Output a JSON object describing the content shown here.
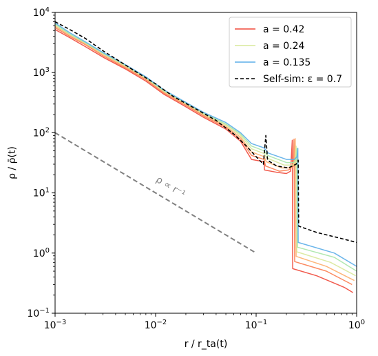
{
  "chart_data": {
    "type": "line",
    "xscale": "log",
    "yscale": "log",
    "xlim": [
      0.001,
      1
    ],
    "ylim": [
      0.1,
      10000
    ],
    "xlabel": "r / r_ta(t)",
    "ylabel": "ρ / ρ̄(t)",
    "x_ticks": [
      {
        "value": 0.001,
        "base": "10",
        "exp": "−3"
      },
      {
        "value": 0.01,
        "base": "10",
        "exp": "−2"
      },
      {
        "value": 0.1,
        "base": "10",
        "exp": "−1"
      },
      {
        "value": 1,
        "base": "10",
        "exp": "0"
      }
    ],
    "y_ticks": [
      {
        "value": 0.1,
        "base": "10",
        "exp": "−1"
      },
      {
        "value": 1,
        "base": "10",
        "exp": "0"
      },
      {
        "value": 10,
        "base": "10",
        "exp": "1"
      },
      {
        "value": 100,
        "base": "10",
        "exp": "2"
      },
      {
        "value": 1000,
        "base": "10",
        "exp": "3"
      },
      {
        "value": 10000,
        "base": "10",
        "exp": "4"
      }
    ],
    "legend": {
      "placement": "top-right"
    },
    "annotation": {
      "text": "ρ ∝ r⁻¹",
      "color": "#808080"
    },
    "reference_line": {
      "style": "dashed",
      "color": "#808080",
      "points": [
        [
          0.001,
          100
        ],
        [
          0.1,
          1
        ]
      ]
    },
    "series": [
      {
        "name": "a = 0.42",
        "color": "#f0483a",
        "legend": true,
        "points": [
          [
            0.001,
            5200
          ],
          [
            0.0014,
            3800
          ],
          [
            0.002,
            2700
          ],
          [
            0.003,
            1800
          ],
          [
            0.005,
            1150
          ],
          [
            0.008,
            720
          ],
          [
            0.012,
            440
          ],
          [
            0.02,
            270
          ],
          [
            0.03,
            180
          ],
          [
            0.05,
            115
          ],
          [
            0.07,
            72
          ],
          [
            0.09,
            36
          ],
          [
            0.12,
            33
          ],
          [
            0.121,
            24
          ],
          [
            0.16,
            22
          ],
          [
            0.2,
            21
          ],
          [
            0.22,
            23
          ],
          [
            0.229,
            75
          ],
          [
            0.231,
            0.55
          ],
          [
            0.4,
            0.42
          ],
          [
            0.75,
            0.27
          ],
          [
            0.92,
            0.22
          ]
        ]
      },
      {
        "name": "",
        "color": "#fb7c4e",
        "legend": false,
        "points": [
          [
            0.001,
            5600
          ],
          [
            0.0014,
            4000
          ],
          [
            0.002,
            2900
          ],
          [
            0.003,
            1900
          ],
          [
            0.005,
            1200
          ],
          [
            0.008,
            760
          ],
          [
            0.012,
            460
          ],
          [
            0.02,
            285
          ],
          [
            0.03,
            190
          ],
          [
            0.05,
            122
          ],
          [
            0.07,
            78
          ],
          [
            0.09,
            42
          ],
          [
            0.12,
            36
          ],
          [
            0.124,
            28
          ],
          [
            0.17,
            23
          ],
          [
            0.21,
            24
          ],
          [
            0.235,
            28
          ],
          [
            0.238,
            78
          ],
          [
            0.242,
            0.72
          ],
          [
            0.5,
            0.5
          ],
          [
            0.9,
            0.3
          ]
        ]
      },
      {
        "name": "",
        "color": "#fdae6b",
        "legend": false,
        "points": [
          [
            0.001,
            5900
          ],
          [
            0.0014,
            4200
          ],
          [
            0.002,
            3000
          ],
          [
            0.003,
            2000
          ],
          [
            0.005,
            1250
          ],
          [
            0.008,
            790
          ],
          [
            0.012,
            480
          ],
          [
            0.02,
            295
          ],
          [
            0.03,
            198
          ],
          [
            0.05,
            128
          ],
          [
            0.07,
            84
          ],
          [
            0.09,
            48
          ],
          [
            0.12,
            40
          ],
          [
            0.126,
            33
          ],
          [
            0.18,
            26
          ],
          [
            0.22,
            26
          ],
          [
            0.24,
            30
          ],
          [
            0.245,
            80
          ],
          [
            0.25,
            0.88
          ],
          [
            0.5,
            0.6
          ],
          [
            0.95,
            0.35
          ]
        ]
      },
      {
        "name": "a = 0.24",
        "color": "#d8e89a",
        "legend": true,
        "points": [
          [
            0.001,
            6200
          ],
          [
            0.0014,
            4300
          ],
          [
            0.002,
            3100
          ],
          [
            0.003,
            2050
          ],
          [
            0.005,
            1300
          ],
          [
            0.008,
            810
          ],
          [
            0.012,
            495
          ],
          [
            0.02,
            305
          ],
          [
            0.03,
            205
          ],
          [
            0.05,
            135
          ],
          [
            0.07,
            90
          ],
          [
            0.09,
            54
          ],
          [
            0.12,
            45
          ],
          [
            0.128,
            38
          ],
          [
            0.19,
            29
          ],
          [
            0.23,
            29
          ],
          [
            0.245,
            33
          ],
          [
            0.25,
            60
          ],
          [
            0.254,
            1.05
          ],
          [
            0.55,
            0.7
          ],
          [
            0.98,
            0.42
          ]
        ]
      },
      {
        "name": "",
        "color": "#a8e6a8",
        "legend": false,
        "points": [
          [
            0.001,
            6400
          ],
          [
            0.0014,
            4400
          ],
          [
            0.002,
            3150
          ],
          [
            0.003,
            2100
          ],
          [
            0.005,
            1330
          ],
          [
            0.008,
            830
          ],
          [
            0.012,
            505
          ],
          [
            0.02,
            312
          ],
          [
            0.03,
            212
          ],
          [
            0.05,
            140
          ],
          [
            0.07,
            95
          ],
          [
            0.09,
            60
          ],
          [
            0.12,
            50
          ],
          [
            0.13,
            42
          ],
          [
            0.2,
            32
          ],
          [
            0.235,
            32
          ],
          [
            0.25,
            36
          ],
          [
            0.255,
            55
          ],
          [
            0.258,
            1.25
          ],
          [
            0.6,
            0.85
          ],
          [
            1.0,
            0.5
          ]
        ]
      },
      {
        "name": "a = 0.135",
        "color": "#5aade8",
        "legend": true,
        "points": [
          [
            0.001,
            6700
          ],
          [
            0.0014,
            4600
          ],
          [
            0.002,
            3250
          ],
          [
            0.003,
            2150
          ],
          [
            0.005,
            1360
          ],
          [
            0.008,
            850
          ],
          [
            0.012,
            520
          ],
          [
            0.02,
            320
          ],
          [
            0.03,
            218
          ],
          [
            0.05,
            148
          ],
          [
            0.07,
            100
          ],
          [
            0.09,
            66
          ],
          [
            0.12,
            56
          ],
          [
            0.132,
            46
          ],
          [
            0.2,
            36
          ],
          [
            0.24,
            36
          ],
          [
            0.255,
            40
          ],
          [
            0.26,
            55
          ],
          [
            0.262,
            1.5
          ],
          [
            0.6,
            1.0
          ],
          [
            1.0,
            0.6
          ]
        ]
      },
      {
        "name": "Self-sim: ε = 0.7",
        "color": "#000000",
        "dashed": true,
        "legend": true,
        "points": [
          [
            0.001,
            7000
          ],
          [
            0.0014,
            5200
          ],
          [
            0.002,
            3700
          ],
          [
            0.003,
            2300
          ],
          [
            0.004,
            1700
          ],
          [
            0.006,
            1100
          ],
          [
            0.01,
            650
          ],
          [
            0.015,
            400
          ],
          [
            0.025,
            250
          ],
          [
            0.04,
            160
          ],
          [
            0.06,
            95
          ],
          [
            0.08,
            60
          ],
          [
            0.1,
            40
          ],
          [
            0.118,
            30
          ],
          [
            0.125,
            90
          ],
          [
            0.13,
            35
          ],
          [
            0.16,
            28
          ],
          [
            0.21,
            26
          ],
          [
            0.25,
            30
          ],
          [
            0.262,
            35
          ],
          [
            0.265,
            2.8
          ],
          [
            0.4,
            2.2
          ],
          [
            0.7,
            1.75
          ],
          [
            1.0,
            1.5
          ]
        ]
      }
    ]
  }
}
